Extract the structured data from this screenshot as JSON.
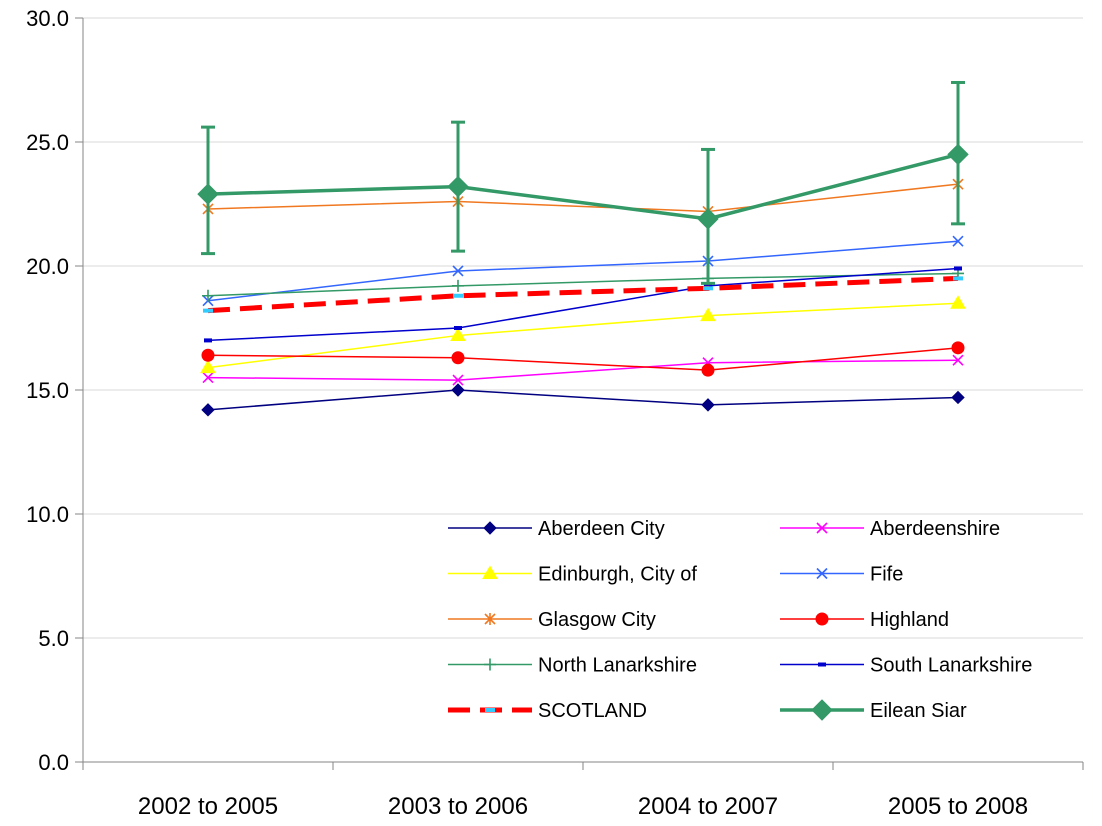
{
  "chart_data": {
    "type": "line",
    "title": "",
    "xlabel": "",
    "ylabel": "",
    "ylim": [
      0,
      30
    ],
    "ytick_labels": [
      "0.0",
      "5.0",
      "10.0",
      "15.0",
      "20.0",
      "25.0",
      "30.0"
    ],
    "grid": "horizontal",
    "legend_position": "bottom-right inside plot",
    "categories": [
      "2002 to 2005",
      "2003 to 2006",
      "2004 to 2007",
      "2005 to 2008"
    ],
    "series": [
      {
        "name": "Aberdeen City",
        "values": [
          14.2,
          15.0,
          14.4,
          14.7
        ],
        "color": "#000080",
        "marker": "diamond",
        "dash": "solid",
        "width": 1.5
      },
      {
        "name": "Aberdeenshire",
        "values": [
          15.5,
          15.4,
          16.1,
          16.2
        ],
        "color": "#ff00ff",
        "marker": "x",
        "dash": "solid",
        "width": 1.5
      },
      {
        "name": "Edinburgh, City of",
        "values": [
          15.9,
          17.2,
          18.0,
          18.5
        ],
        "color": "#ffff00",
        "marker": "triangle",
        "dash": "solid",
        "width": 1.5
      },
      {
        "name": "Fife",
        "values": [
          18.6,
          19.8,
          20.2,
          21.0
        ],
        "color": "#3366ff",
        "marker": "x",
        "dash": "solid",
        "width": 1.5
      },
      {
        "name": "Glasgow City",
        "values": [
          22.3,
          22.6,
          22.2,
          23.3
        ],
        "color": "#f07820",
        "marker": "star",
        "dash": "solid",
        "width": 1.5
      },
      {
        "name": "Highland",
        "values": [
          16.4,
          16.3,
          15.8,
          16.7
        ],
        "color": "#ff0000",
        "marker": "circle",
        "dash": "solid",
        "width": 1.5
      },
      {
        "name": "North Lanarkshire",
        "values": [
          18.8,
          19.2,
          19.5,
          19.7
        ],
        "color": "#339966",
        "marker": "plus",
        "dash": "solid",
        "width": 1.5
      },
      {
        "name": "South Lanarkshire",
        "values": [
          17.0,
          17.5,
          19.2,
          19.9
        ],
        "color": "#0000cc",
        "marker": "dash",
        "dash": "solid",
        "width": 1.5
      },
      {
        "name": "SCOTLAND",
        "values": [
          18.2,
          18.8,
          19.1,
          19.5
        ],
        "color": "#ff0000",
        "marker": "dash-cyan",
        "dash": "dashed",
        "width": 5
      },
      {
        "name": "Eilean Siar",
        "values": [
          22.9,
          23.2,
          21.9,
          24.5
        ],
        "color": "#339966",
        "marker": "diamond",
        "dash": "solid",
        "width": 3.5,
        "error_bars": {
          "lower": [
            20.5,
            20.6,
            19.3,
            21.7
          ],
          "upper": [
            25.6,
            25.8,
            24.7,
            27.4
          ]
        }
      }
    ]
  }
}
